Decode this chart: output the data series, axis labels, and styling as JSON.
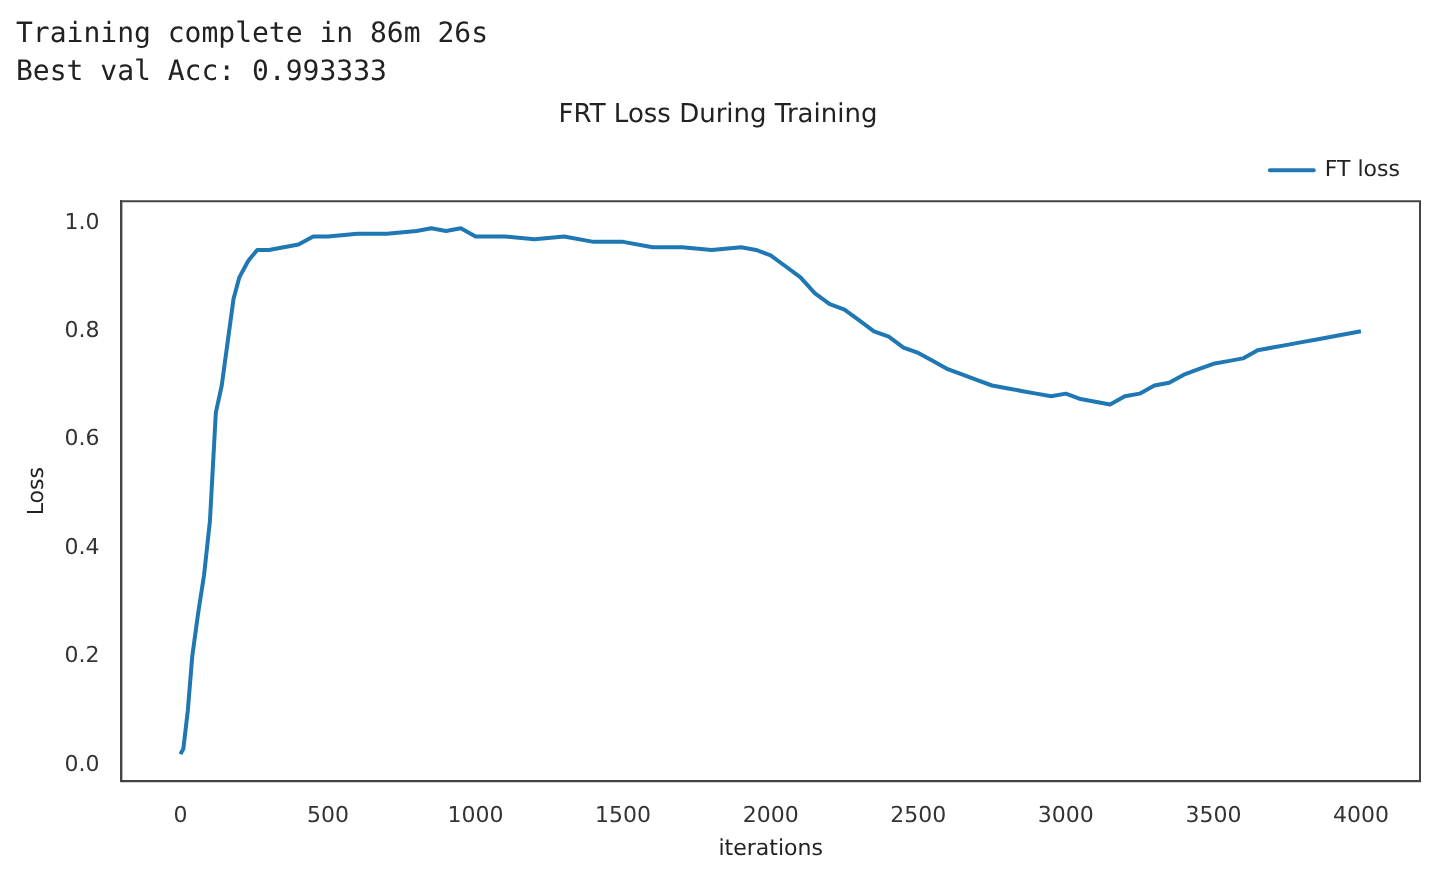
{
  "chart_data": {
    "type": "line",
    "title": "FRT Loss During Training",
    "xlabel": "iterations",
    "ylabel": "Loss",
    "annotations": [
      "Training complete in 86m 26s",
      "Best val Acc: 0.993333"
    ],
    "x": [
      0,
      10,
      25,
      40,
      60,
      80,
      100,
      120,
      140,
      160,
      180,
      200,
      230,
      260,
      300,
      350,
      400,
      450,
      500,
      600,
      700,
      800,
      850,
      900,
      950,
      1000,
      1100,
      1200,
      1300,
      1400,
      1500,
      1600,
      1700,
      1800,
      1900,
      1950,
      2000,
      2050,
      2100,
      2150,
      2200,
      2250,
      2300,
      2350,
      2400,
      2450,
      2500,
      2550,
      2600,
      2650,
      2700,
      2750,
      2800,
      2850,
      2900,
      2950,
      3000,
      3050,
      3100,
      3150,
      3200,
      3250,
      3300,
      3350,
      3400,
      3450,
      3500,
      3550,
      3600,
      3650,
      3700,
      3750,
      3800,
      3850,
      3900,
      3950,
      4000
    ],
    "series": [
      {
        "name": "FT loss",
        "color": "#1f77b4",
        "values": [
          0.02,
          0.03,
          0.1,
          0.2,
          0.28,
          0.35,
          0.45,
          0.65,
          0.7,
          0.78,
          0.86,
          0.9,
          0.93,
          0.95,
          0.95,
          0.955,
          0.96,
          0.975,
          0.975,
          0.98,
          0.98,
          0.985,
          0.99,
          0.985,
          0.99,
          0.975,
          0.975,
          0.97,
          0.975,
          0.965,
          0.965,
          0.955,
          0.955,
          0.95,
          0.955,
          0.95,
          0.94,
          0.92,
          0.9,
          0.87,
          0.85,
          0.84,
          0.82,
          0.8,
          0.79,
          0.77,
          0.76,
          0.745,
          0.73,
          0.72,
          0.71,
          0.7,
          0.695,
          0.69,
          0.685,
          0.68,
          0.685,
          0.675,
          0.67,
          0.665,
          0.68,
          0.685,
          0.7,
          0.705,
          0.72,
          0.73,
          0.74,
          0.745,
          0.75,
          0.765,
          0.77,
          0.775,
          0.78,
          0.785,
          0.79,
          0.795,
          0.8
        ]
      }
    ],
    "xlim": [
      -200,
      4200
    ],
    "xticks": [
      0,
      500,
      1000,
      1500,
      2000,
      2500,
      3000,
      3500,
      4000
    ],
    "ylim": [
      -0.03,
      1.04
    ],
    "yticks": [
      {
        "value": 0,
        "label": "0.0"
      },
      {
        "value": 0.2,
        "label": "0.2"
      },
      {
        "value": 0.4,
        "label": "0.4"
      },
      {
        "value": 0.6,
        "label": "0.6"
      },
      {
        "value": 0.8,
        "label": "0.8"
      },
      {
        "value": 1,
        "label": "1.0"
      }
    ],
    "grid": false,
    "legend": "top right",
    "marker": "none",
    "line_style": "solid"
  }
}
